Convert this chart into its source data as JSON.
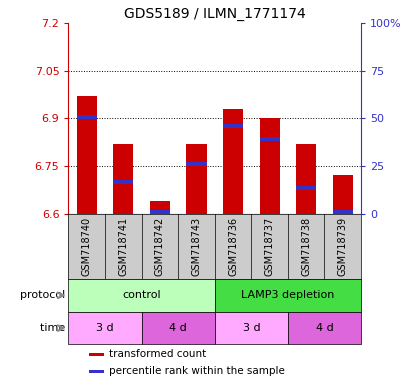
{
  "title": "GDS5189 / ILMN_1771174",
  "samples": [
    "GSM718740",
    "GSM718741",
    "GSM718742",
    "GSM718743",
    "GSM718736",
    "GSM718737",
    "GSM718738",
    "GSM718739"
  ],
  "transformed_counts": [
    6.97,
    6.82,
    6.64,
    6.82,
    6.93,
    6.9,
    6.82,
    6.72
  ],
  "percentile_values": [
    6.905,
    6.7,
    6.605,
    6.755,
    6.875,
    6.835,
    6.68,
    6.605
  ],
  "ylim": [
    6.6,
    7.2
  ],
  "yticks": [
    6.6,
    6.75,
    6.9,
    7.05,
    7.2
  ],
  "right_yticks": [
    0,
    25,
    50,
    75,
    100
  ],
  "right_ytick_labels": [
    "0",
    "25",
    "50",
    "75",
    "100%"
  ],
  "bar_color": "#cc0000",
  "blue_color": "#3333cc",
  "bar_width": 0.55,
  "protocol_groups": [
    {
      "label": "control",
      "span": [
        0,
        4
      ],
      "color": "#bbffbb"
    },
    {
      "label": "LAMP3 depletion",
      "span": [
        4,
        8
      ],
      "color": "#44dd44"
    }
  ],
  "time_groups": [
    {
      "label": "3 d",
      "span": [
        0,
        2
      ],
      "color": "#ffaaff"
    },
    {
      "label": "4 d",
      "span": [
        2,
        4
      ],
      "color": "#dd66dd"
    },
    {
      "label": "3 d",
      "span": [
        4,
        6
      ],
      "color": "#ffaaff"
    },
    {
      "label": "4 d",
      "span": [
        6,
        8
      ],
      "color": "#dd66dd"
    }
  ],
  "legend_items": [
    {
      "label": "transformed count",
      "color": "#cc0000"
    },
    {
      "label": "percentile rank within the sample",
      "color": "#3333cc"
    }
  ],
  "protocol_label": "protocol",
  "time_label": "time",
  "left_axis_color": "#cc0000",
  "right_axis_color": "#3333cc",
  "sample_bg_color": "#cccccc",
  "arrow_color": "#888888"
}
